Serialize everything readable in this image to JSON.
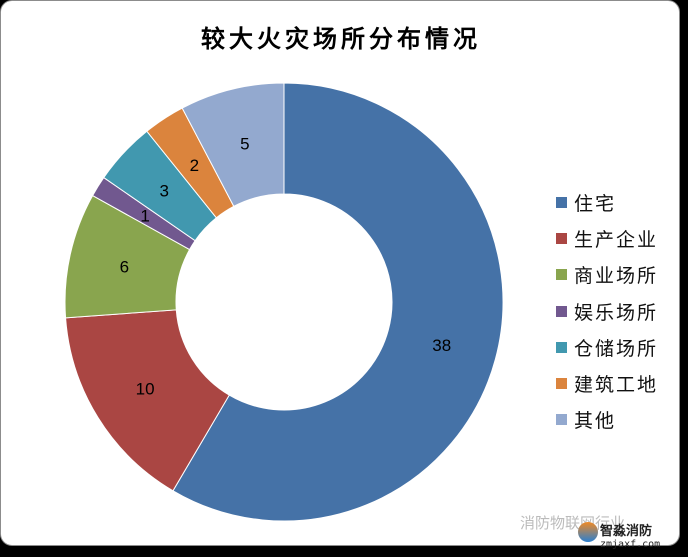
{
  "chart_data": {
    "type": "pie",
    "donut": true,
    "title": "较大火灾场所分布情况",
    "categories": [
      "住宅",
      "生产企业",
      "商业场所",
      "娱乐场所",
      "仓储场所",
      "建筑工地",
      "其他"
    ],
    "values": [
      38,
      10,
      6,
      1,
      3,
      2,
      5
    ],
    "colors": [
      "#4572a7",
      "#aa4643",
      "#89a54e",
      "#71588f",
      "#4198af",
      "#db843d",
      "#93a9cf"
    ],
    "legend_position": "right",
    "data_labels": true
  },
  "watermark": {
    "wechat": "消防物联网行业",
    "logo_name": "智淼消防",
    "logo_url": "zmjaxf.com"
  }
}
